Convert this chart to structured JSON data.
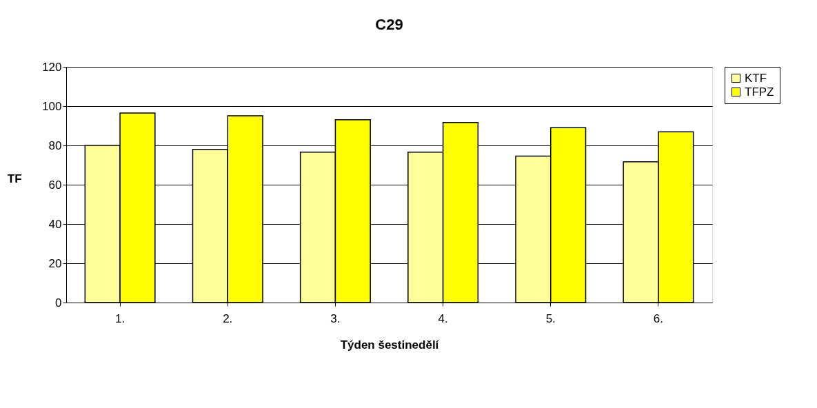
{
  "chart_data": {
    "type": "bar",
    "title": "C29",
    "xlabel": "Týden šestinedělí",
    "ylabel": "TF",
    "categories": [
      "1.",
      "2.",
      "3.",
      "4.",
      "5.",
      "6."
    ],
    "series": [
      {
        "name": "KTF",
        "color": "#ffff99",
        "values": [
          80,
          78,
          76.6,
          76.6,
          74.6,
          71.7
        ]
      },
      {
        "name": "TFPZ",
        "color": "#ffff00",
        "values": [
          96.5,
          95.1,
          93.1,
          91.7,
          89,
          86.9
        ]
      }
    ],
    "ylim": [
      0,
      120
    ],
    "yticks": [
      0,
      20,
      40,
      60,
      80,
      100,
      120
    ],
    "grid": "y",
    "legend": "right"
  }
}
